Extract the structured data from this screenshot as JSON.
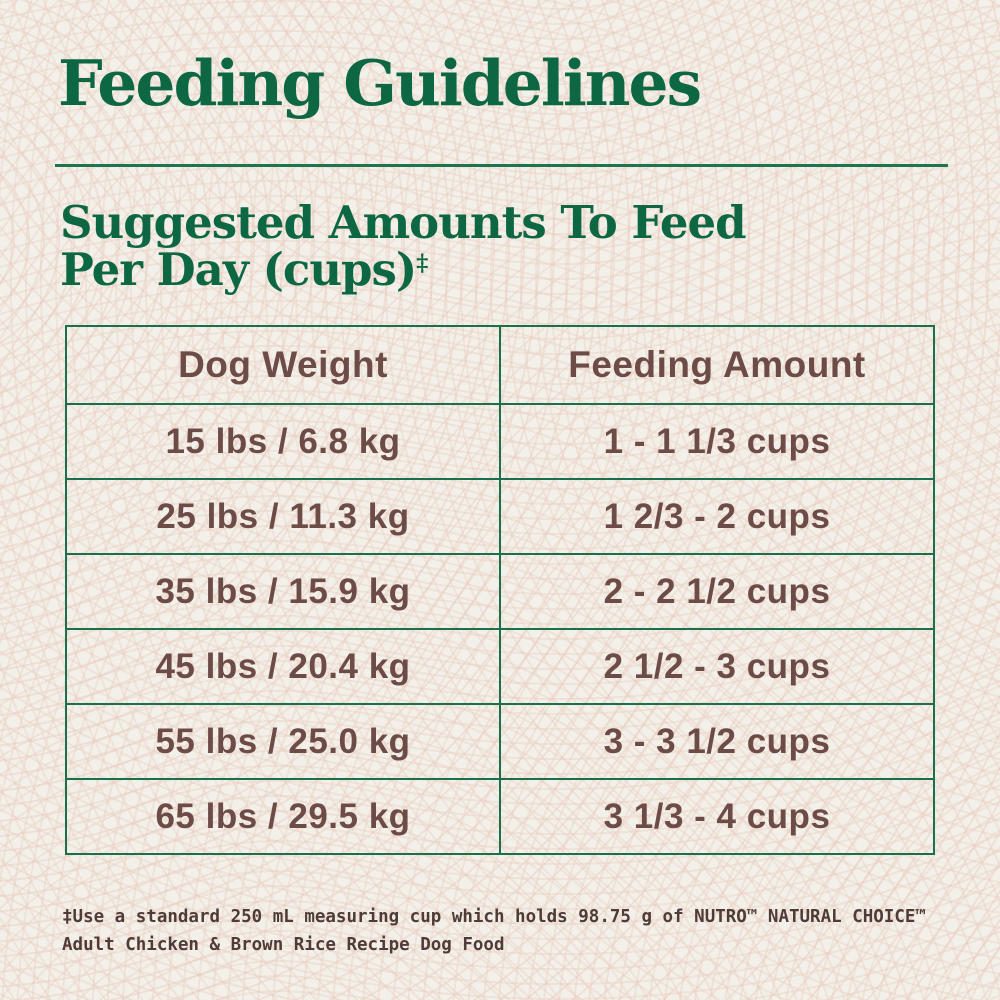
{
  "page": {
    "title": "Feeding Guidelines",
    "subtitle_line1": "Suggested Amounts To Feed",
    "subtitle_line2": "Per Day (cups)",
    "footnote_marker": "‡"
  },
  "table": {
    "headers": [
      "Dog Weight",
      "Feeding Amount"
    ],
    "rows": [
      {
        "weight": "15 lbs / 6.8 kg",
        "amount": "1 - 1 1/3 cups"
      },
      {
        "weight": "25 lbs / 11.3 kg",
        "amount": "1 2/3 - 2 cups"
      },
      {
        "weight": "35 lbs / 15.9 kg",
        "amount": "2 - 2 1/2 cups"
      },
      {
        "weight": "45 lbs / 20.4 kg",
        "amount": "2 1/2 - 3 cups"
      },
      {
        "weight": "55 lbs / 25.0 kg",
        "amount": "3 - 3 1/2 cups"
      },
      {
        "weight": "65 lbs / 29.5 kg",
        "amount": "3 1/3 - 4 cups"
      }
    ]
  },
  "footnote": {
    "line1": "‡Use a standard 250 mL measuring cup which holds 98.75 g of NUTRO™ NATURAL CHOICE™",
    "line2": "Adult Chicken & Brown Rice Recipe Dog Food"
  },
  "colors": {
    "background": "#f2f0e8",
    "texture_pink": "#ecd3c8",
    "heading_green": "#0e6743",
    "rule_green": "#1f7450",
    "table_border_green": "#1a6f4c",
    "table_text_brown": "#6d4c48",
    "footnote_brown": "#4f3b38"
  }
}
